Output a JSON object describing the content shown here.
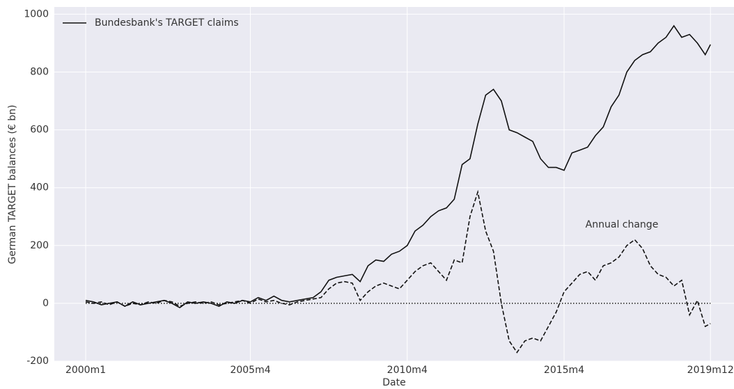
{
  "chart_data": {
    "type": "line",
    "x_label": "Date",
    "y_label": "German TARGET balances (€ bn)",
    "x": [
      0,
      3,
      6,
      9,
      12,
      15,
      18,
      21,
      24,
      27,
      30,
      33,
      36,
      39,
      42,
      45,
      48,
      51,
      54,
      57,
      60,
      63,
      66,
      69,
      72,
      75,
      78,
      81,
      84,
      87,
      90,
      93,
      96,
      99,
      102,
      105,
      108,
      111,
      114,
      117,
      120,
      123,
      126,
      129,
      132,
      135,
      138,
      141,
      144,
      147,
      150,
      153,
      156,
      159,
      162,
      165,
      168,
      171,
      174,
      177,
      180,
      183,
      186,
      189,
      192,
      195,
      198,
      201,
      204,
      207,
      210,
      213,
      216,
      219,
      222,
      225,
      228,
      231,
      234,
      237,
      239
    ],
    "series": [
      {
        "name": "Bundesbank's TARGET claims",
        "color": "#111111",
        "style": "solid",
        "legend": true,
        "values": [
          10,
          5,
          -5,
          0,
          5,
          -10,
          5,
          -5,
          0,
          5,
          10,
          0,
          -15,
          5,
          0,
          5,
          0,
          -10,
          5,
          0,
          10,
          5,
          20,
          10,
          25,
          10,
          5,
          10,
          15,
          20,
          40,
          80,
          90,
          95,
          100,
          75,
          130,
          150,
          145,
          170,
          180,
          200,
          250,
          270,
          300,
          320,
          330,
          360,
          480,
          500,
          620,
          720,
          740,
          700,
          600,
          590,
          575,
          560,
          500,
          470,
          470,
          460,
          520,
          530,
          540,
          580,
          610,
          680,
          720,
          800,
          840,
          860,
          870,
          900,
          920,
          960,
          920,
          930,
          900,
          860,
          895
        ]
      },
      {
        "name": "Annual change",
        "color": "#111111",
        "style": "dashed",
        "legend": false,
        "values": [
          5,
          0,
          5,
          -5,
          5,
          -10,
          0,
          -5,
          5,
          0,
          10,
          5,
          -10,
          0,
          5,
          0,
          5,
          -5,
          0,
          5,
          10,
          0,
          15,
          5,
          10,
          0,
          -5,
          5,
          10,
          15,
          20,
          50,
          70,
          75,
          70,
          10,
          40,
          60,
          70,
          60,
          50,
          80,
          110,
          130,
          140,
          110,
          80,
          150,
          140,
          300,
          385,
          250,
          180,
          0,
          -130,
          -170,
          -130,
          -120,
          -130,
          -80,
          -30,
          40,
          70,
          100,
          110,
          80,
          130,
          140,
          160,
          200,
          220,
          190,
          130,
          100,
          90,
          60,
          80,
          -40,
          10,
          -80,
          -70
        ]
      }
    ],
    "reference_line": 0,
    "xlim": [
      -12,
      248
    ],
    "ylim": [
      -200,
      1025
    ],
    "xticks": [
      {
        "value": 0,
        "label": "2000m1"
      },
      {
        "value": 63,
        "label": "2005m4"
      },
      {
        "value": 123,
        "label": "2010m4"
      },
      {
        "value": 183,
        "label": "2015m4"
      },
      {
        "value": 239,
        "label": "2019m12"
      }
    ],
    "yticks": [
      -200,
      0,
      200,
      400,
      600,
      800,
      1000
    ],
    "grid": true,
    "legend_position": "upper left"
  }
}
